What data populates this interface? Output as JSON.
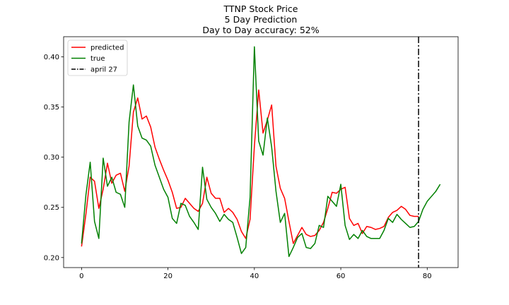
{
  "chart_data": {
    "type": "line",
    "title_lines": [
      "TTNP Stock Price",
      "5 Day Prediction",
      "Day to Day accuracy: 52%"
    ],
    "xlabel": "",
    "ylabel": "",
    "xlim": [
      -4.15,
      87.15
    ],
    "ylim": [
      0.19,
      0.42
    ],
    "xticks": [
      0,
      20,
      40,
      60,
      80
    ],
    "yticks": [
      0.2,
      0.25,
      0.3,
      0.35,
      0.4
    ],
    "ytick_labels": [
      "0.20",
      "0.25",
      "0.30",
      "0.35",
      "0.40"
    ],
    "grid": false,
    "legend_position": "top-left",
    "series": [
      {
        "name": "predicted",
        "color": "#ff0000",
        "x": [
          0,
          1,
          2,
          3,
          4,
          5,
          6,
          7,
          8,
          9,
          10,
          11,
          12,
          13,
          14,
          15,
          16,
          17,
          18,
          19,
          20,
          21,
          22,
          23,
          24,
          25,
          26,
          27,
          28,
          29,
          30,
          31,
          32,
          33,
          34,
          35,
          36,
          37,
          38,
          39,
          40,
          41,
          42,
          43,
          44,
          45,
          46,
          47,
          48,
          49,
          50,
          51,
          52,
          53,
          54,
          55,
          56,
          57,
          58,
          59,
          60,
          61,
          62,
          63,
          64,
          65,
          66,
          67,
          68,
          69,
          70,
          71,
          72,
          73,
          74,
          75,
          76,
          77,
          78
        ],
        "y": [
          0.211,
          0.243,
          0.28,
          0.276,
          0.249,
          0.268,
          0.294,
          0.274,
          0.282,
          0.284,
          0.266,
          0.291,
          0.345,
          0.359,
          0.338,
          0.341,
          0.33,
          0.31,
          0.298,
          0.287,
          0.277,
          0.265,
          0.249,
          0.25,
          0.259,
          0.254,
          0.249,
          0.246,
          0.254,
          0.28,
          0.264,
          0.259,
          0.259,
          0.245,
          0.249,
          0.245,
          0.238,
          0.226,
          0.219,
          0.238,
          0.311,
          0.367,
          0.324,
          0.337,
          0.352,
          0.291,
          0.269,
          0.259,
          0.236,
          0.214,
          0.222,
          0.23,
          0.223,
          0.221,
          0.222,
          0.227,
          0.235,
          0.249,
          0.265,
          0.264,
          0.268,
          0.27,
          0.239,
          0.232,
          0.234,
          0.224,
          0.231,
          0.23,
          0.228,
          0.229,
          0.231,
          0.24,
          0.245,
          0.247,
          0.251,
          0.248,
          0.242,
          0.241,
          0.241
        ]
      },
      {
        "name": "true",
        "color": "#008000",
        "x": [
          0,
          1,
          2,
          3,
          4,
          5,
          6,
          7,
          8,
          9,
          10,
          11,
          12,
          13,
          14,
          15,
          16,
          17,
          18,
          19,
          20,
          21,
          22,
          23,
          24,
          25,
          26,
          27,
          28,
          29,
          30,
          31,
          32,
          33,
          34,
          35,
          36,
          37,
          38,
          39,
          40,
          41,
          42,
          43,
          44,
          45,
          46,
          47,
          48,
          49,
          50,
          51,
          52,
          53,
          54,
          55,
          56,
          57,
          58,
          59,
          60,
          61,
          62,
          63,
          64,
          65,
          66,
          67,
          68,
          69,
          70,
          71,
          72,
          73,
          74,
          75,
          76,
          77,
          78,
          79,
          80,
          81,
          82,
          83
        ],
        "y": [
          0.214,
          0.262,
          0.295,
          0.236,
          0.219,
          0.299,
          0.271,
          0.28,
          0.265,
          0.263,
          0.25,
          0.335,
          0.372,
          0.331,
          0.319,
          0.317,
          0.311,
          0.292,
          0.28,
          0.268,
          0.26,
          0.239,
          0.234,
          0.254,
          0.252,
          0.241,
          0.235,
          0.228,
          0.29,
          0.258,
          0.25,
          0.244,
          0.236,
          0.243,
          0.238,
          0.235,
          0.22,
          0.204,
          0.21,
          0.26,
          0.41,
          0.316,
          0.302,
          0.339,
          0.31,
          0.266,
          0.235,
          0.244,
          0.201,
          0.21,
          0.22,
          0.224,
          0.21,
          0.209,
          0.214,
          0.232,
          0.23,
          0.261,
          0.256,
          0.251,
          0.273,
          0.232,
          0.218,
          0.223,
          0.219,
          0.227,
          0.221,
          0.219,
          0.219,
          0.219,
          0.227,
          0.239,
          0.235,
          0.243,
          0.238,
          0.234,
          0.23,
          0.231,
          0.236,
          0.248,
          0.256,
          0.261,
          0.266,
          0.273
        ]
      }
    ],
    "vline": {
      "x": 78,
      "label": "april 27",
      "color": "#000000",
      "style": "dashdot"
    }
  }
}
